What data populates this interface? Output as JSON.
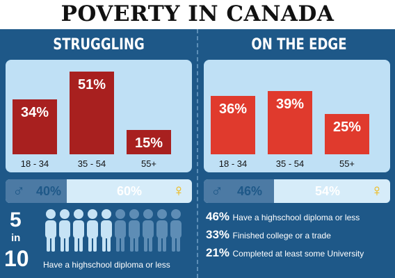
{
  "title": "POVERTY IN CANADA",
  "colors": {
    "background": "#1e5888",
    "struggling_bar": "#a8201f",
    "edge_bar": "#e03a2d",
    "chart_box": "#bfe0f5",
    "person_filled": "#c6e3f5",
    "person_empty": "#5e8db5"
  },
  "chart_data": [
    {
      "type": "bar",
      "title": "STRUGGLING",
      "categories": [
        "18 - 34",
        "35 - 54",
        "55+"
      ],
      "values": [
        34,
        51,
        15
      ],
      "value_labels": [
        "34%",
        "51%",
        "15%"
      ],
      "ylim": [
        0,
        55
      ]
    },
    {
      "type": "bar",
      "title": "ON THE EDGE",
      "categories": [
        "18 - 34",
        "35 - 54",
        "55+"
      ],
      "values": [
        36,
        39,
        25
      ],
      "value_labels": [
        "36%",
        "39%",
        "25%"
      ],
      "ylim": [
        0,
        55
      ]
    }
  ],
  "gender_split": [
    {
      "male": 40,
      "female": 60,
      "male_label": "40%",
      "female_label": "60%"
    },
    {
      "male": 46,
      "female": 54,
      "male_label": "46%",
      "female_label": "54%"
    }
  ],
  "gender_symbols": {
    "male": "♂",
    "female": "♀"
  },
  "education_left": {
    "num": "5",
    "in": "in",
    "den": "10",
    "highlighted": 5,
    "total": 10,
    "caption": "Have a highschool diploma or less"
  },
  "education_right": [
    {
      "pct": "46%",
      "text": "Have a highschool diploma or less"
    },
    {
      "pct": "33%",
      "text": "Finished college or a trade"
    },
    {
      "pct": "21%",
      "text": "Completed at least some University"
    }
  ]
}
